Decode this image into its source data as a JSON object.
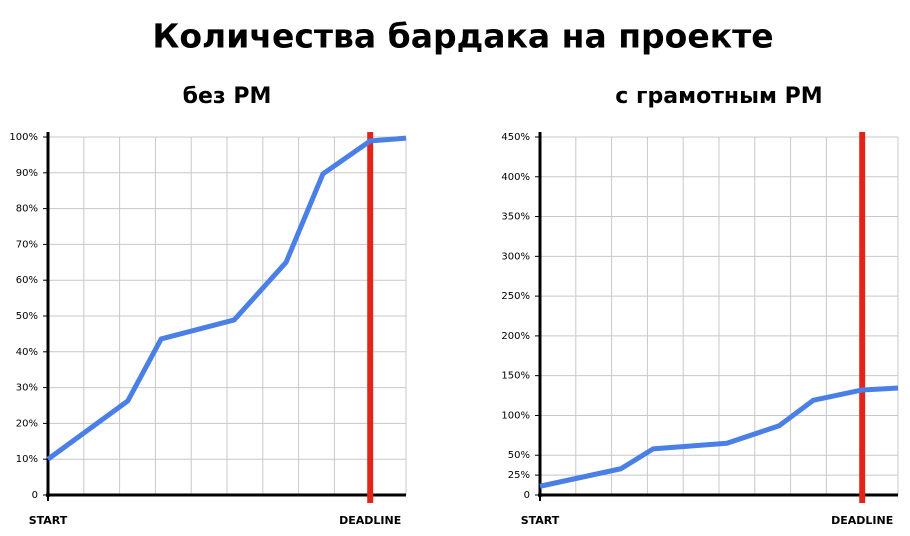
{
  "title": "Количества бардака на проекте",
  "chart_data": [
    {
      "type": "line",
      "title": "без PM",
      "x": [
        0,
        2.23,
        3.16,
        5.2,
        6.65,
        7.68,
        9,
        10
      ],
      "series": [
        {
          "color": "#4a7fe6",
          "values": [
            10,
            26.3,
            43.6,
            48.9,
            65,
            89.7,
            98.9,
            99.7
          ]
        }
      ],
      "xlim": [
        0,
        10
      ],
      "xticks": [
        {
          "value": 0,
          "label": "START"
        },
        {
          "value": 9,
          "label": "DEADLINE"
        }
      ],
      "xgrid": [
        1,
        2,
        3,
        4,
        5,
        6,
        7,
        8,
        9,
        10
      ],
      "deadline_color": "#e3241b",
      "ylim": [
        0,
        100
      ],
      "yticks": [
        0,
        {
          "value": 10,
          "label": "10%"
        },
        {
          "value": 20,
          "label": "20%"
        },
        {
          "value": 30,
          "label": "30%"
        },
        {
          "value": 40,
          "label": "40%"
        },
        {
          "value": 50,
          "label": "50%"
        },
        {
          "value": 60,
          "label": "60%"
        },
        {
          "value": 70,
          "label": "70%"
        },
        {
          "value": 80,
          "label": "80%"
        },
        {
          "value": 90,
          "label": "90%"
        },
        {
          "value": 100,
          "label": "100%"
        }
      ],
      "grid": true
    },
    {
      "type": "line",
      "title": "с грамотным PM",
      "x": [
        0,
        2.26,
        3.16,
        5.22,
        6.68,
        7.63,
        9,
        10
      ],
      "series": [
        {
          "color": "#4a7fe6",
          "values": [
            11,
            33,
            58,
            65,
            87,
            119,
            132,
            134.5
          ]
        }
      ],
      "xlim": [
        0,
        10
      ],
      "xticks": [
        {
          "value": 0,
          "label": "START"
        },
        {
          "value": 9,
          "label": "DEADLINE"
        }
      ],
      "xgrid": [
        1,
        2,
        3,
        4,
        5,
        6,
        7,
        8,
        9,
        10
      ],
      "deadline_color": "#e3241b",
      "ylim": [
        0,
        450
      ],
      "yticks": [
        0,
        {
          "value": 25,
          "label": "25%"
        },
        {
          "value": 50,
          "label": "50%"
        },
        {
          "value": 100,
          "label": "100%"
        },
        {
          "value": 150,
          "label": "150%"
        },
        {
          "value": 200,
          "label": "200%"
        },
        {
          "value": 250,
          "label": "250%"
        },
        {
          "value": 300,
          "label": "300%"
        },
        {
          "value": 350,
          "label": "350%"
        },
        {
          "value": 400,
          "label": "400%"
        },
        {
          "value": 450,
          "label": "450%"
        }
      ],
      "grid": true
    }
  ]
}
